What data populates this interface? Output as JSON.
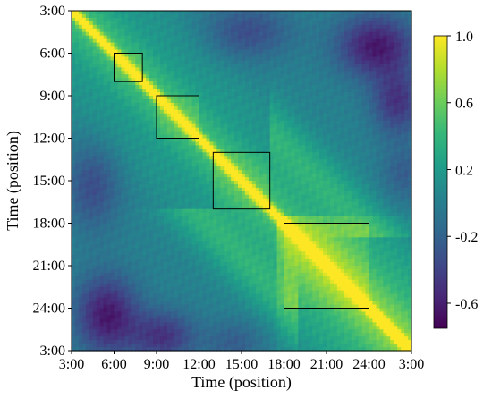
{
  "chart_data": {
    "type": "heatmap",
    "title": "",
    "xlabel": "Time (position)",
    "ylabel": "Time (position)",
    "x_tick_labels": [
      "3:00",
      "6:00",
      "9:00",
      "12:00",
      "15:00",
      "18:00",
      "21:00",
      "24:00",
      "3:00"
    ],
    "y_tick_labels": [
      "3:00",
      "6:00",
      "9:00",
      "12:00",
      "15:00",
      "18:00",
      "21:00",
      "24:00",
      "3:00"
    ],
    "x_range_hours": [
      3,
      27
    ],
    "y_range_hours": [
      3,
      27
    ],
    "y_axis_direction": "top-to-bottom",
    "colormap": "viridis",
    "colorbar": {
      "range": [
        -0.75,
        1.0
      ],
      "tick_values": [
        1.0,
        0.6,
        0.2,
        -0.2,
        -0.6
      ],
      "tick_labels": [
        "1.0",
        "0.6",
        "0.2",
        "-0.2",
        "-0.6"
      ]
    },
    "diagonal_value": 1.0,
    "highlighted_blocks": [
      {
        "from_hour": 6,
        "to_hour": 8
      },
      {
        "from_hour": 9,
        "to_hour": 12
      },
      {
        "from_hour": 13,
        "to_hour": 17
      },
      {
        "from_hour": 18,
        "to_hour": 24
      }
    ],
    "approximate_values": {
      "near_diagonal": 0.8,
      "block_interior_6_8": 0.75,
      "block_interior_9_12": 0.75,
      "block_interior_13_17": 0.7,
      "block_interior_18_24": 0.9,
      "early_morning_vs_night": -0.6,
      "background": 0.1
    }
  }
}
